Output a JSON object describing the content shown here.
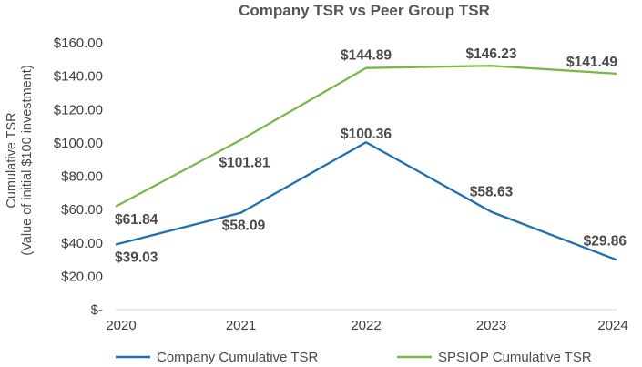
{
  "chart_data": {
    "type": "line",
    "title": "Company TSR vs Peer Group TSR",
    "ylabel_line1": "Cumulative TSR",
    "ylabel_line2": "(Value of initial $100 investment)",
    "xlabel": "",
    "categories": [
      "2020",
      "2021",
      "2022",
      "2023",
      "2024"
    ],
    "ylim": [
      0,
      160
    ],
    "ytick_labels": [
      "$-",
      "$20.00",
      "$40.00",
      "$60.00",
      "$80.00",
      "$100.00",
      "$120.00",
      "$140.00",
      "$160.00"
    ],
    "grid": false,
    "legend": "bottom",
    "series": [
      {
        "name": "Company Cumulative TSR",
        "color": "#1f6fb2",
        "values": [
          39.03,
          58.09,
          100.36,
          58.63,
          29.86
        ],
        "labels": [
          "$39.03",
          "$58.09",
          "$100.36",
          "$58.63",
          "$29.86"
        ]
      },
      {
        "name": "SPSIOP Cumulative TSR",
        "color": "#7ab648",
        "values": [
          61.84,
          101.81,
          144.89,
          146.23,
          141.49
        ],
        "labels": [
          "$61.84",
          "$101.81",
          "$144.89",
          "$146.23",
          "$141.49"
        ]
      }
    ]
  }
}
